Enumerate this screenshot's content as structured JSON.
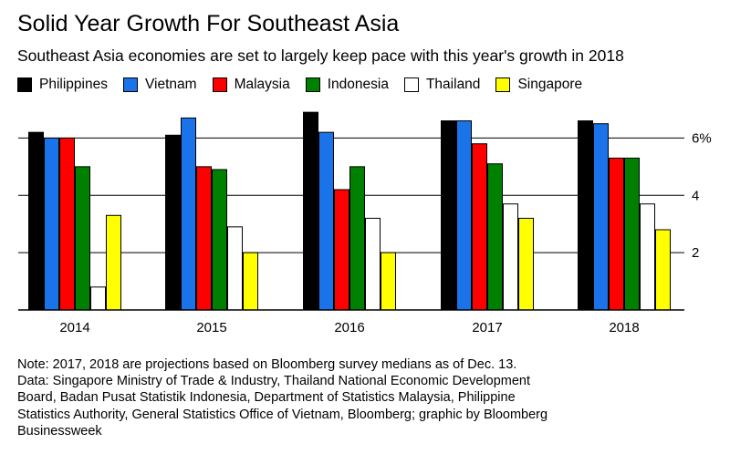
{
  "title": "Solid Year Growth For Southeast Asia",
  "subtitle": "Southeast Asia economies are set to largely keep pace with this year's growth in 2018",
  "chart_data": {
    "type": "bar",
    "categories": [
      "2014",
      "2015",
      "2016",
      "2017",
      "2018"
    ],
    "series": [
      {
        "name": "Philippines",
        "color": "#000000",
        "values": [
          6.2,
          6.1,
          6.9,
          6.6,
          6.6
        ]
      },
      {
        "name": "Vietnam",
        "color": "#1a73e8",
        "values": [
          6.0,
          6.7,
          6.2,
          6.6,
          6.5
        ]
      },
      {
        "name": "Malaysia",
        "color": "#ff0000",
        "values": [
          6.0,
          5.0,
          4.2,
          5.8,
          5.3
        ]
      },
      {
        "name": "Indonesia",
        "color": "#008000",
        "values": [
          5.0,
          4.9,
          5.0,
          5.1,
          5.3
        ]
      },
      {
        "name": "Thailand",
        "color": "#ffffff",
        "values": [
          0.8,
          2.9,
          3.2,
          3.7,
          3.7
        ]
      },
      {
        "name": "Singapore",
        "color": "#ffff00",
        "values": [
          3.3,
          2.0,
          2.0,
          3.2,
          2.8
        ]
      }
    ],
    "ylim": [
      0,
      7
    ],
    "yticks": [
      {
        "value": 2,
        "label": "2"
      },
      {
        "value": 4,
        "label": "4"
      },
      {
        "value": 6,
        "label": "6%"
      }
    ],
    "grid": true,
    "legend_position": "top-left",
    "y_axis_side": "right"
  },
  "notes": [
    "Note: 2017, 2018 are projections based on Bloomberg survey medians as of Dec. 13.",
    "Data: Singapore Ministry of Trade & Industry, Thailand National Economic Development",
    "Board, Badan Pusat Statistik Indonesia, Department of Statistics Malaysia, Philippine",
    "Statistics Authority, General Statistics Office of Vietnam, Bloomberg; graphic by Bloomberg",
    "Businessweek"
  ]
}
